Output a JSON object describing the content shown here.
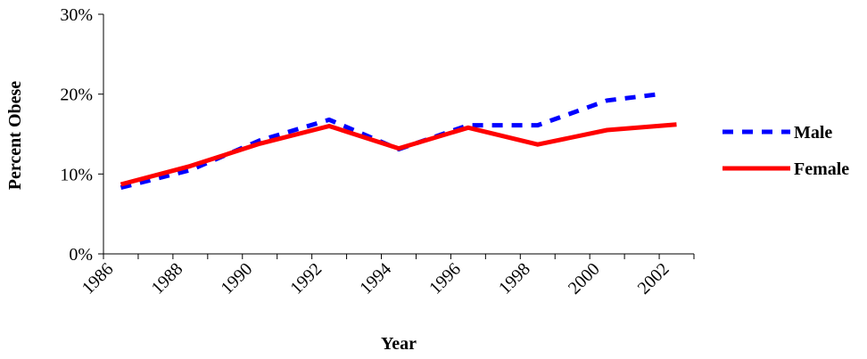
{
  "chart_data": {
    "type": "line",
    "title": "",
    "xlabel": "Year",
    "ylabel": "Percent Obese",
    "x_tick_labels": [
      "1986",
      "1988",
      "1990",
      "1992",
      "1994",
      "1996",
      "1998",
      "2000",
      "2002"
    ],
    "y_tick_labels": [
      "0%",
      "10%",
      "20%",
      "30%"
    ],
    "y_ticks": [
      0,
      10,
      20,
      30
    ],
    "xlim": [
      1986,
      2003
    ],
    "ylim": [
      0,
      30
    ],
    "grid": false,
    "legend_position": "right",
    "series": [
      {
        "name": "Male",
        "color": "#0000ff",
        "dash": "dashed",
        "x": [
          1986.5,
          1988.5,
          1990.5,
          1992.5,
          1994.5,
          1996.5,
          1998.5,
          2000.5,
          2002
        ],
        "values": [
          8.3,
          10.5,
          14.2,
          16.8,
          13.1,
          16.1,
          16.1,
          19.2,
          20.0
        ]
      },
      {
        "name": "Female",
        "color": "#ff0000",
        "dash": "solid",
        "x": [
          1986.5,
          1988.5,
          1990.5,
          1992.5,
          1994.5,
          1996.5,
          1998.5,
          2000.5,
          2002.5
        ],
        "values": [
          8.7,
          11.0,
          13.8,
          16.0,
          13.2,
          15.8,
          13.7,
          15.5,
          16.2
        ]
      }
    ]
  }
}
